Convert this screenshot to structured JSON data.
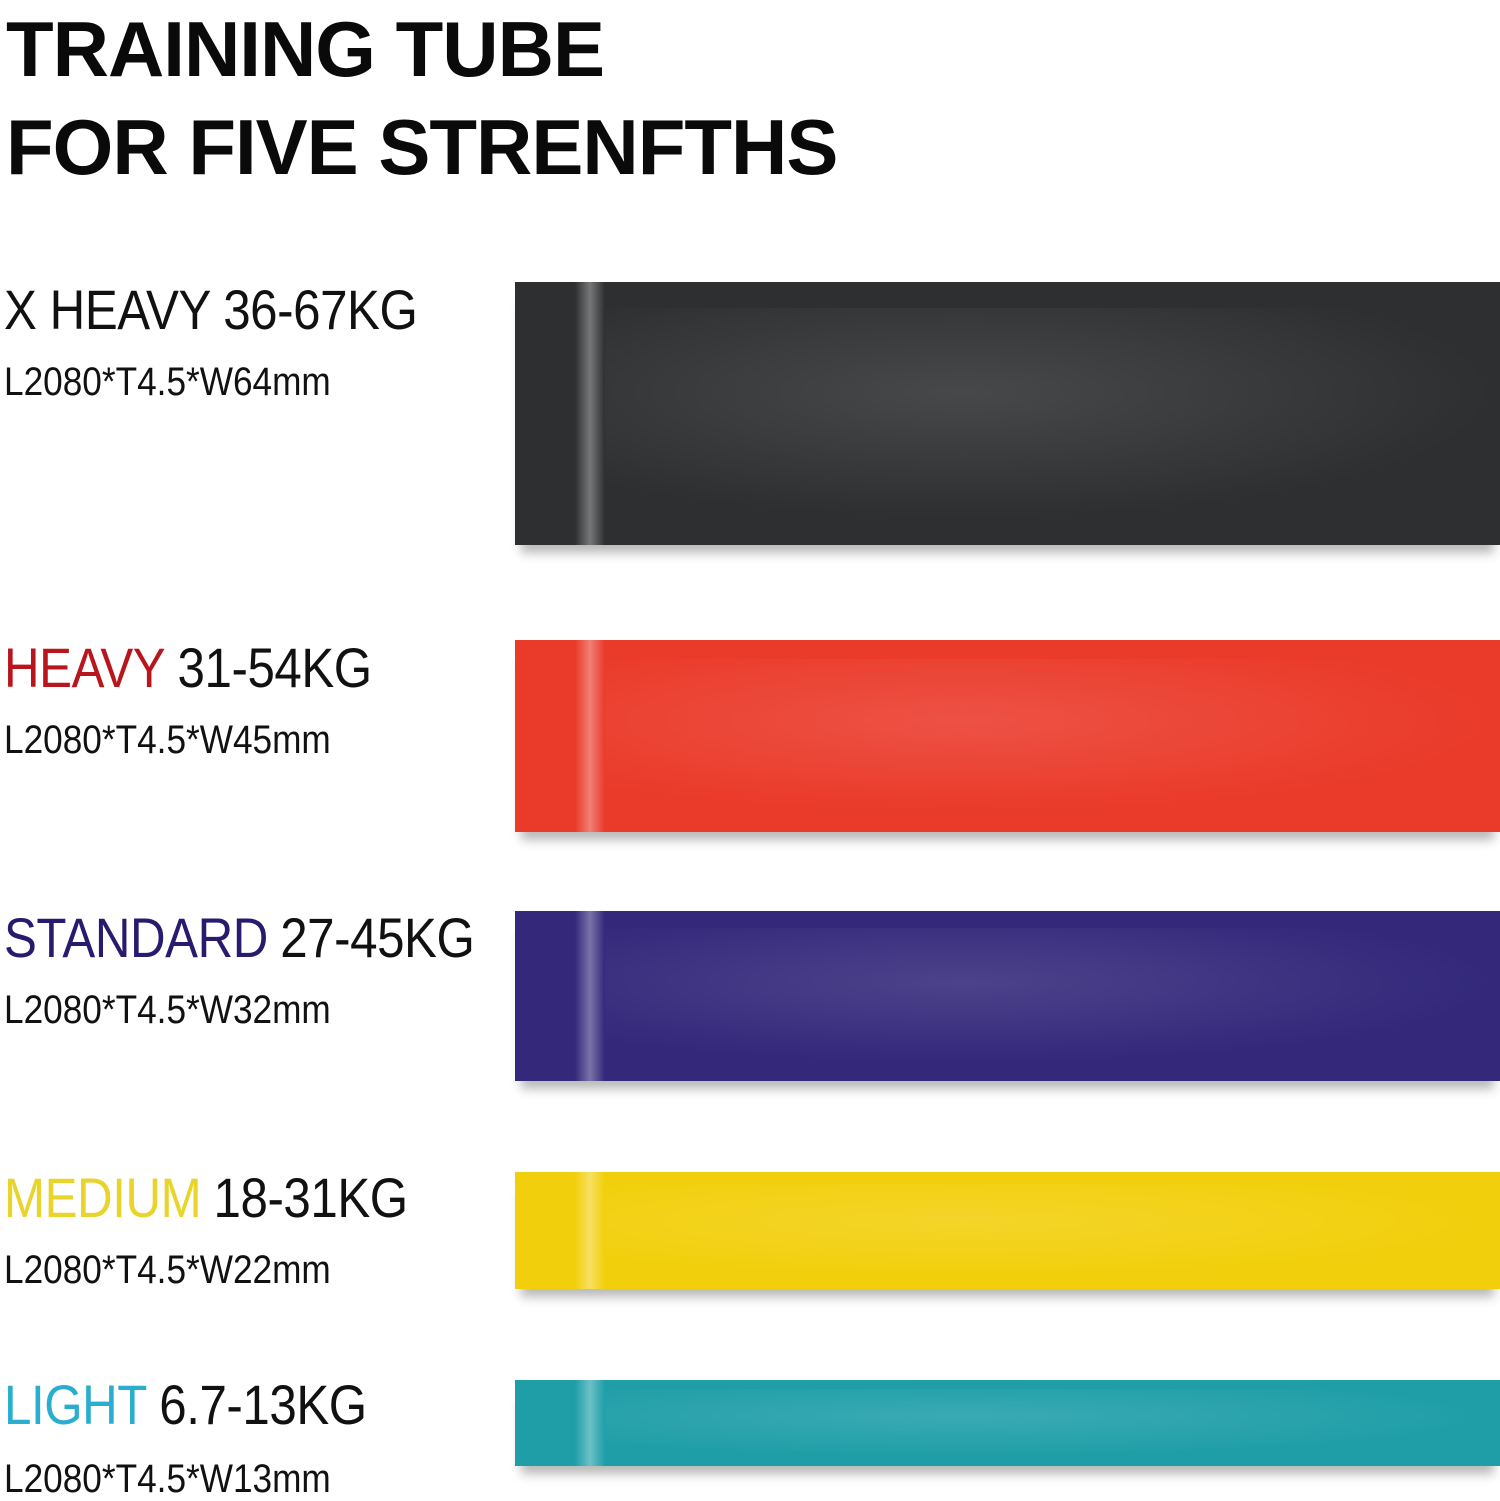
{
  "title": {
    "line1": "TRAINING TUBE",
    "line2": "FOR FIVE STRENFTHS"
  },
  "bands": [
    {
      "name": "X HEAVY",
      "range": "36-67KG",
      "spec": "L2080*T4.5*W64mm",
      "name_color": "#111111",
      "band_color": "#2e2f31"
    },
    {
      "name": "HEAVY",
      "range": "31-54KG",
      "spec": "L2080*T4.5*W45mm",
      "name_color": "#b8161c",
      "band_color": "#ea3a2a"
    },
    {
      "name": "STANDARD",
      "range": "27-45KG",
      "spec": "L2080*T4.5*W32mm",
      "name_color": "#2a1a6e",
      "band_color": "#33287a"
    },
    {
      "name": "MEDIUM",
      "range": "18-31KG",
      "spec": "L2080*T4.5*W22mm",
      "name_color": "#e8d42a",
      "band_color": "#f2cf0c"
    },
    {
      "name": "LIGHT",
      "range": "6.7-13KG",
      "spec": "L2080*T4.5*W13mm",
      "name_color": "#2aaed0",
      "band_color": "#1f9ea8"
    }
  ]
}
